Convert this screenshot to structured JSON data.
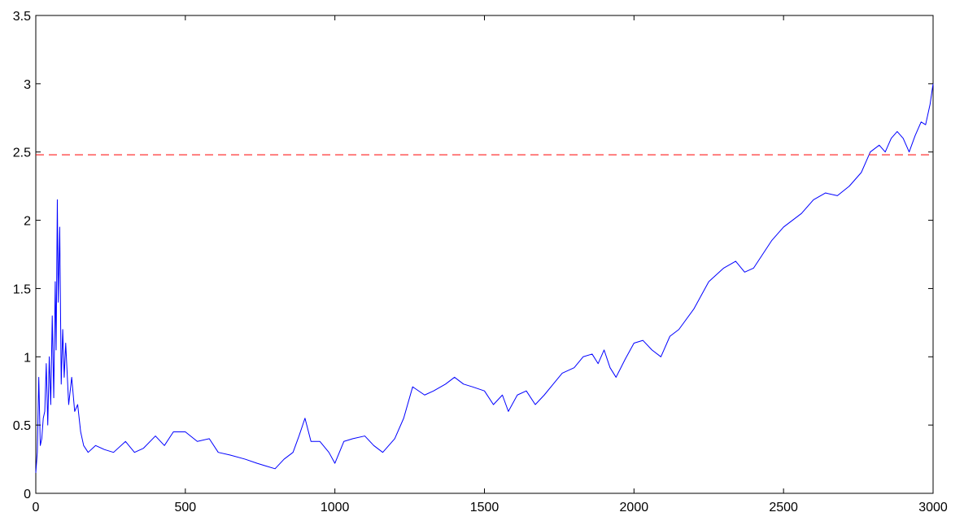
{
  "chart_data": {
    "type": "line",
    "title": "",
    "xlabel": "",
    "ylabel": "",
    "xlim": [
      0,
      3000
    ],
    "ylim": [
      0,
      3.5
    ],
    "xticks": [
      0,
      500,
      1000,
      1500,
      2000,
      2500,
      3000
    ],
    "xtick_labels": [
      "0",
      "500",
      "1000",
      "1500",
      "2000",
      "2500",
      "3000"
    ],
    "yticks": [
      0,
      0.5,
      1,
      1.5,
      2,
      2.5,
      3,
      3.5
    ],
    "ytick_labels": [
      "0",
      "0.5",
      "1",
      "1.5",
      "2",
      "2.5",
      "3",
      "3.5"
    ],
    "grid": false,
    "legend": "none",
    "series": [
      {
        "style": "solid",
        "color": "#0000ff",
        "x": [
          0,
          5,
          10,
          15,
          20,
          25,
          30,
          35,
          40,
          45,
          50,
          55,
          60,
          65,
          68,
          72,
          75,
          80,
          85,
          90,
          95,
          100,
          110,
          120,
          130,
          140,
          150,
          160,
          175,
          200,
          230,
          260,
          300,
          330,
          360,
          400,
          430,
          460,
          500,
          540,
          580,
          610,
          650,
          700,
          740,
          770,
          800,
          830,
          860,
          880,
          900,
          920,
          950,
          980,
          1000,
          1030,
          1060,
          1100,
          1130,
          1160,
          1200,
          1230,
          1260,
          1300,
          1330,
          1370,
          1400,
          1430,
          1460,
          1500,
          1530,
          1560,
          1580,
          1610,
          1640,
          1670,
          1700,
          1730,
          1760,
          1800,
          1830,
          1860,
          1880,
          1900,
          1920,
          1940,
          1970,
          2000,
          2030,
          2060,
          2090,
          2120,
          2150,
          2200,
          2250,
          2300,
          2340,
          2370,
          2400,
          2430,
          2460,
          2500,
          2530,
          2560,
          2600,
          2640,
          2680,
          2720,
          2760,
          2790,
          2820,
          2840,
          2860,
          2880,
          2900,
          2920,
          2940,
          2960,
          2975,
          2990,
          3000
        ],
        "y": [
          0.15,
          0.3,
          0.85,
          0.35,
          0.4,
          0.55,
          0.6,
          0.95,
          0.5,
          1.0,
          0.65,
          1.3,
          0.7,
          1.55,
          1.05,
          2.15,
          1.4,
          1.95,
          0.8,
          1.2,
          0.85,
          1.1,
          0.65,
          0.85,
          0.6,
          0.65,
          0.45,
          0.35,
          0.3,
          0.35,
          0.32,
          0.3,
          0.38,
          0.3,
          0.33,
          0.42,
          0.35,
          0.45,
          0.45,
          0.38,
          0.4,
          0.3,
          0.28,
          0.25,
          0.22,
          0.2,
          0.18,
          0.25,
          0.3,
          0.42,
          0.55,
          0.38,
          0.38,
          0.3,
          0.22,
          0.38,
          0.4,
          0.42,
          0.35,
          0.3,
          0.4,
          0.55,
          0.78,
          0.72,
          0.75,
          0.8,
          0.85,
          0.8,
          0.78,
          0.75,
          0.65,
          0.72,
          0.6,
          0.72,
          0.75,
          0.65,
          0.72,
          0.8,
          0.88,
          0.92,
          1.0,
          1.02,
          0.95,
          1.05,
          0.92,
          0.85,
          0.98,
          1.1,
          1.12,
          1.05,
          1.0,
          1.15,
          1.2,
          1.35,
          1.55,
          1.65,
          1.7,
          1.62,
          1.65,
          1.75,
          1.85,
          1.95,
          2.0,
          2.05,
          2.15,
          2.2,
          2.18,
          2.25,
          2.35,
          2.5,
          2.55,
          2.5,
          2.6,
          2.65,
          2.6,
          2.5,
          2.62,
          2.72,
          2.7,
          2.85,
          3.0
        ]
      },
      {
        "style": "dashed",
        "color": "#ff0000",
        "x": [
          0,
          3000
        ],
        "y": [
          2.48,
          2.48
        ]
      }
    ]
  }
}
